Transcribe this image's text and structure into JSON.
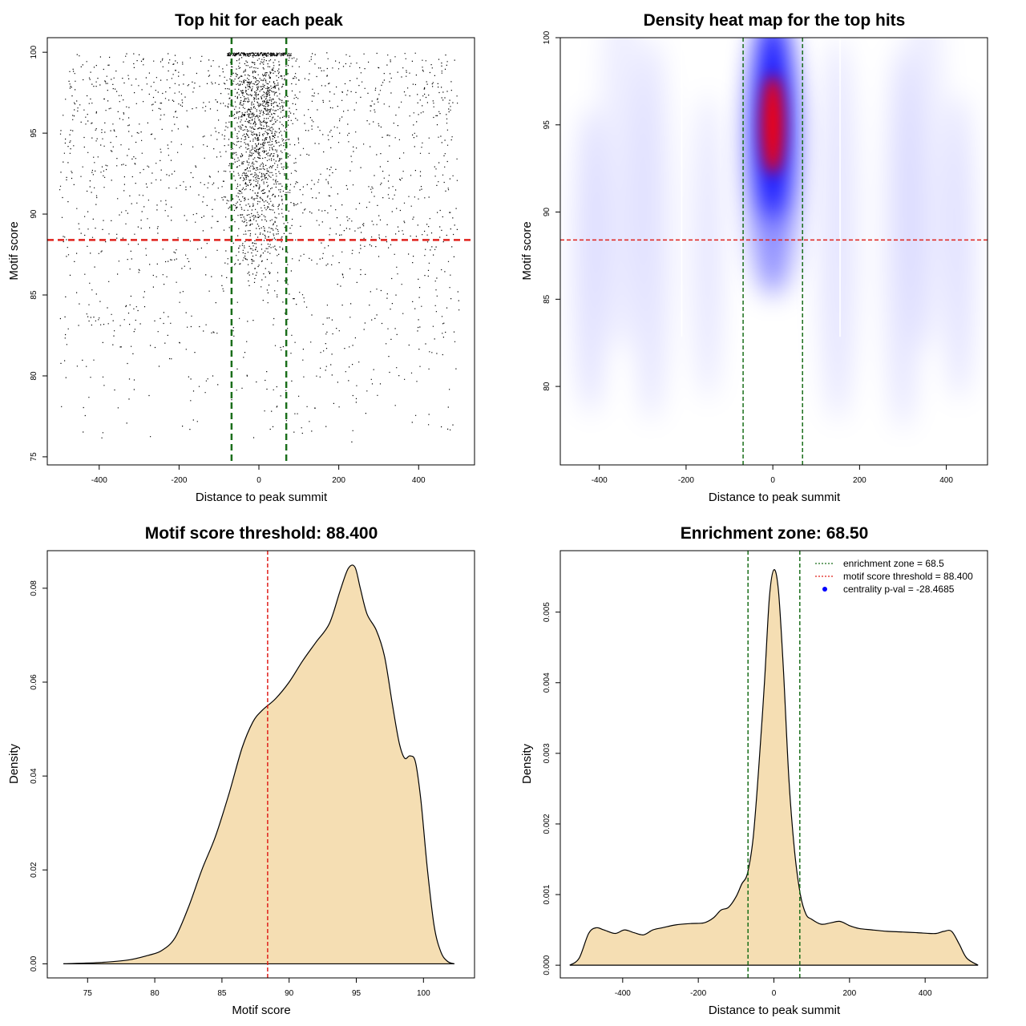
{
  "chart_data": [
    {
      "type": "scatter",
      "title": "Top hit for each peak",
      "xlabel": "Distance to peak summit",
      "ylabel": "Motif score",
      "xlim": [
        -530,
        540
      ],
      "ylim": [
        74.5,
        100.9
      ],
      "xticks": [
        -400,
        -200,
        0,
        200,
        400
      ],
      "yticks": [
        75,
        80,
        85,
        90,
        95,
        100
      ],
      "hlines": [
        {
          "y": 88.4,
          "color": "#e0201b",
          "style": "dashed"
        }
      ],
      "vlines": [
        {
          "x": -68.5,
          "color": "#1a6e1a",
          "style": "dashed"
        },
        {
          "x": 68.5,
          "color": "#1a6e1a",
          "style": "dashed"
        }
      ],
      "points_distribution": {
        "x_range": [
          -500,
          500
        ],
        "y_range": [
          75.5,
          100
        ],
        "central_cluster": {
          "x_range": [
            -68,
            68
          ],
          "y_mode": 95
        },
        "approx_point_count": 3000
      }
    },
    {
      "type": "heatmap",
      "title": "Density heat map for the top hits",
      "xlabel": "Distance to peak summit",
      "ylabel": "Motif score",
      "xlim": [
        -490,
        495
      ],
      "ylim": [
        75.5,
        100
      ],
      "xticks": [
        -400,
        -200,
        0,
        200,
        400
      ],
      "yticks": [
        80,
        85,
        90,
        95,
        100
      ],
      "hlines": [
        {
          "y": 88.4,
          "color": "#e0201b",
          "style": "dashed"
        }
      ],
      "vlines": [
        {
          "x": -68.5,
          "color": "#1a6e1a",
          "style": "dashed"
        },
        {
          "x": 68.5,
          "color": "#1a6e1a",
          "style": "dashed"
        }
      ],
      "colors": {
        "low": "#ffffff",
        "mid": "#0000ff",
        "high": "#ff0000"
      },
      "density_peak": {
        "x": 0,
        "y": 95
      }
    },
    {
      "type": "area",
      "title": "Motif score threshold: 88.400",
      "xlabel": "Motif score",
      "ylabel": "Density",
      "xlim": [
        72,
        103.8
      ],
      "ylim": [
        -0.003,
        0.088
      ],
      "xticks": [
        75,
        80,
        85,
        90,
        95,
        100
      ],
      "yticks": [
        0.0,
        0.02,
        0.04,
        0.06,
        0.08
      ],
      "ytick_labels": [
        "0.00",
        "0.02",
        "0.04",
        "0.06",
        "0.08"
      ],
      "fill": "#f5deb3",
      "vlines": [
        {
          "x": 88.4,
          "color": "#e0201b",
          "style": "dashed"
        }
      ],
      "x": [
        73.2,
        76,
        78,
        79.5,
        80.5,
        81.5,
        82.5,
        83.5,
        84.5,
        85.5,
        86.5,
        87.3,
        88,
        89,
        90,
        91,
        92,
        93,
        93.8,
        94.4,
        94.9,
        95.3,
        95.8,
        96.5,
        97.1,
        97.7,
        98.2,
        98.6,
        99,
        99.4,
        99.8,
        100.3,
        100.8,
        101.3,
        101.8,
        102.3
      ],
      "y": [
        0,
        0.0003,
        0.0008,
        0.0018,
        0.0028,
        0.0055,
        0.012,
        0.02,
        0.027,
        0.036,
        0.046,
        0.0515,
        0.054,
        0.0565,
        0.06,
        0.0645,
        0.0685,
        0.0725,
        0.0795,
        0.0842,
        0.0845,
        0.08,
        0.0745,
        0.071,
        0.0655,
        0.055,
        0.047,
        0.0438,
        0.0443,
        0.043,
        0.035,
        0.02,
        0.008,
        0.0025,
        0.0005,
        0
      ]
    },
    {
      "type": "area",
      "title": "Enrichment zone: 68.50",
      "xlabel": "Distance to peak summit",
      "ylabel": "Density",
      "xlim": [
        -565,
        565
      ],
      "ylim": [
        -0.00018,
        0.00587
      ],
      "xticks": [
        -400,
        -200,
        0,
        200,
        400
      ],
      "yticks": [
        0.0,
        0.001,
        0.002,
        0.003,
        0.004,
        0.005
      ],
      "ytick_labels": [
        "0.000",
        "0.001",
        "0.002",
        "0.003",
        "0.004",
        "0.005"
      ],
      "fill": "#f5deb3",
      "vlines": [
        {
          "x": -68.5,
          "color": "#1a6e1a",
          "style": "dashed"
        },
        {
          "x": 68.5,
          "color": "#1a6e1a",
          "style": "dashed"
        }
      ],
      "x": [
        -540,
        -515,
        -490,
        -470,
        -450,
        -420,
        -395,
        -370,
        -345,
        -320,
        -295,
        -260,
        -220,
        -185,
        -160,
        -140,
        -120,
        -100,
        -85,
        -70,
        -55,
        -40,
        -25,
        -12,
        0,
        12,
        25,
        40,
        55,
        70,
        85,
        100,
        125,
        150,
        175,
        200,
        225,
        260,
        300,
        340,
        380,
        410,
        430,
        450,
        470,
        490,
        510,
        540
      ],
      "y": [
        0,
        0.0001,
        0.00045,
        0.00053,
        0.0005,
        0.00045,
        0.0005,
        0.00046,
        0.00043,
        0.0005,
        0.00053,
        0.00057,
        0.00059,
        0.0006,
        0.00067,
        0.00078,
        0.00082,
        0.00097,
        0.00115,
        0.0013,
        0.0018,
        0.0028,
        0.004,
        0.0052,
        0.0056,
        0.0053,
        0.0042,
        0.0026,
        0.0016,
        0.001,
        0.00072,
        0.00065,
        0.00058,
        0.0006,
        0.00062,
        0.00056,
        0.00052,
        0.0005,
        0.00048,
        0.00047,
        0.00046,
        0.00045,
        0.00045,
        0.00048,
        0.00048,
        0.0003,
        0.0001,
        0
      ]
    }
  ],
  "legend_br": {
    "items": [
      {
        "label": "enrichment zone = 68.5",
        "color": "#1a6e1a",
        "symbol": "dotted-line"
      },
      {
        "label": "motif score threshold = 88.400",
        "color": "#e0201b",
        "symbol": "dotted-line"
      },
      {
        "label": "centrality p-val = -28.4685",
        "color": "#0000ff",
        "symbol": "point"
      }
    ]
  }
}
